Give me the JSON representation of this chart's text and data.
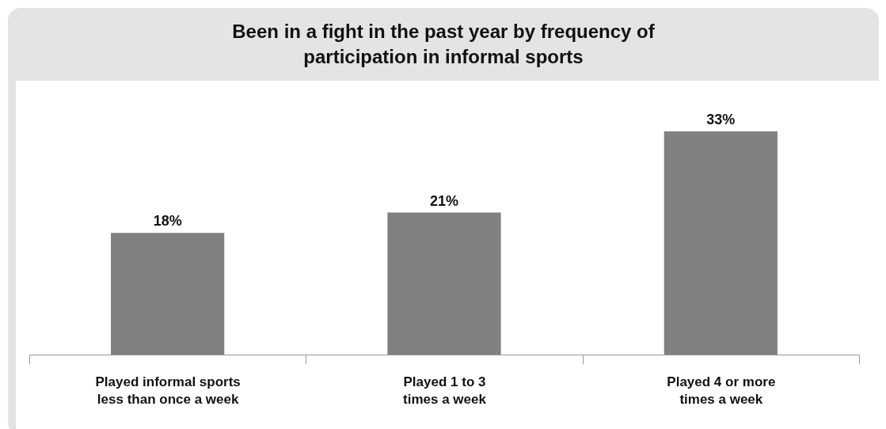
{
  "chart_data": {
    "type": "bar",
    "title": "Been in a fight in the past year by frequency of participation in informal sports",
    "categories": [
      "Played informal sports less than once a week",
      "Played 1 to 3 times a week",
      "Played 4 or more times a week"
    ],
    "values": [
      18,
      21,
      33
    ],
    "value_labels": [
      "18%",
      "21%",
      "33%"
    ],
    "color": "#808080",
    "grid": false
  }
}
